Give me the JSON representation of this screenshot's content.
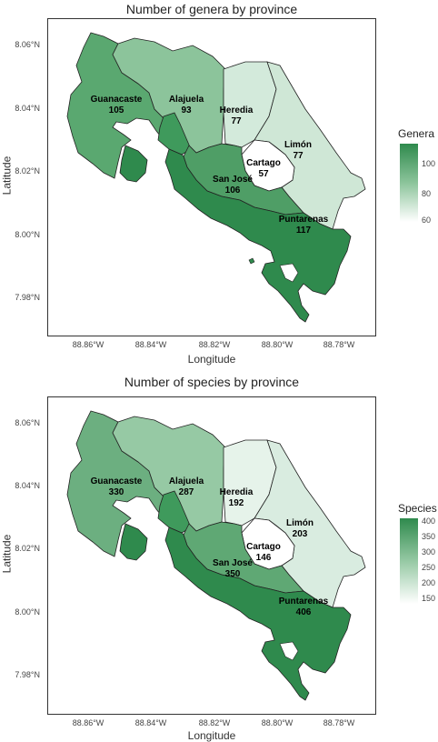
{
  "maps": [
    {
      "title": "Number of genera by province",
      "xlabel": "Longitude",
      "ylabel": "Latitude",
      "y_ticks": [
        "8.06°N",
        "8.04°N",
        "8.02°N",
        "8.00°N",
        "7.98°N"
      ],
      "x_ticks": [
        "88.86°W",
        "88.84°W",
        "88.82°W",
        "88.80°W",
        "88.78°W"
      ],
      "legend": {
        "title": "Genera",
        "labels": [
          "100",
          "80",
          "60"
        ],
        "range": [
          57,
          117
        ]
      },
      "provinces": [
        {
          "name": "Guanacaste",
          "value": "105",
          "color": "#5aa870"
        },
        {
          "name": "Alajuela",
          "value": "93",
          "color": "#8cc49b"
        },
        {
          "name": "Heredia",
          "value": "77",
          "color": "#d3eadb"
        },
        {
          "name": "Limón",
          "value": "77",
          "color": "#cfe7d6"
        },
        {
          "name": "Cartago",
          "value": "57",
          "color": "#ffffff"
        },
        {
          "name": "San José",
          "value": "106",
          "color": "#4f9e66"
        },
        {
          "name": "Puntarenas",
          "value": "117",
          "color": "#2f8a4d"
        }
      ]
    },
    {
      "title": "Number of species by province",
      "xlabel": "Longitude",
      "ylabel": "Latitude",
      "y_ticks": [
        "8.06°N",
        "8.04°N",
        "8.02°N",
        "8.00°N",
        "7.98°N"
      ],
      "x_ticks": [
        "88.86°W",
        "88.84°W",
        "88.82°W",
        "88.80°W",
        "88.78°W"
      ],
      "legend": {
        "title": "Species",
        "labels": [
          "400",
          "350",
          "300",
          "250",
          "200",
          "150"
        ],
        "range": [
          146,
          406
        ]
      },
      "provinces": [
        {
          "name": "Guanacaste",
          "value": "330",
          "color": "#6caf80"
        },
        {
          "name": "Alajuela",
          "value": "287",
          "color": "#96c9a4"
        },
        {
          "name": "Heredia",
          "value": "192",
          "color": "#e6f3ea"
        },
        {
          "name": "Limón",
          "value": "203",
          "color": "#d9ece0"
        },
        {
          "name": "Cartago",
          "value": "146",
          "color": "#ffffff"
        },
        {
          "name": "San José",
          "value": "350",
          "color": "#5fa874"
        },
        {
          "name": "Puntarenas",
          "value": "406",
          "color": "#2f8a4d"
        }
      ]
    }
  ]
}
